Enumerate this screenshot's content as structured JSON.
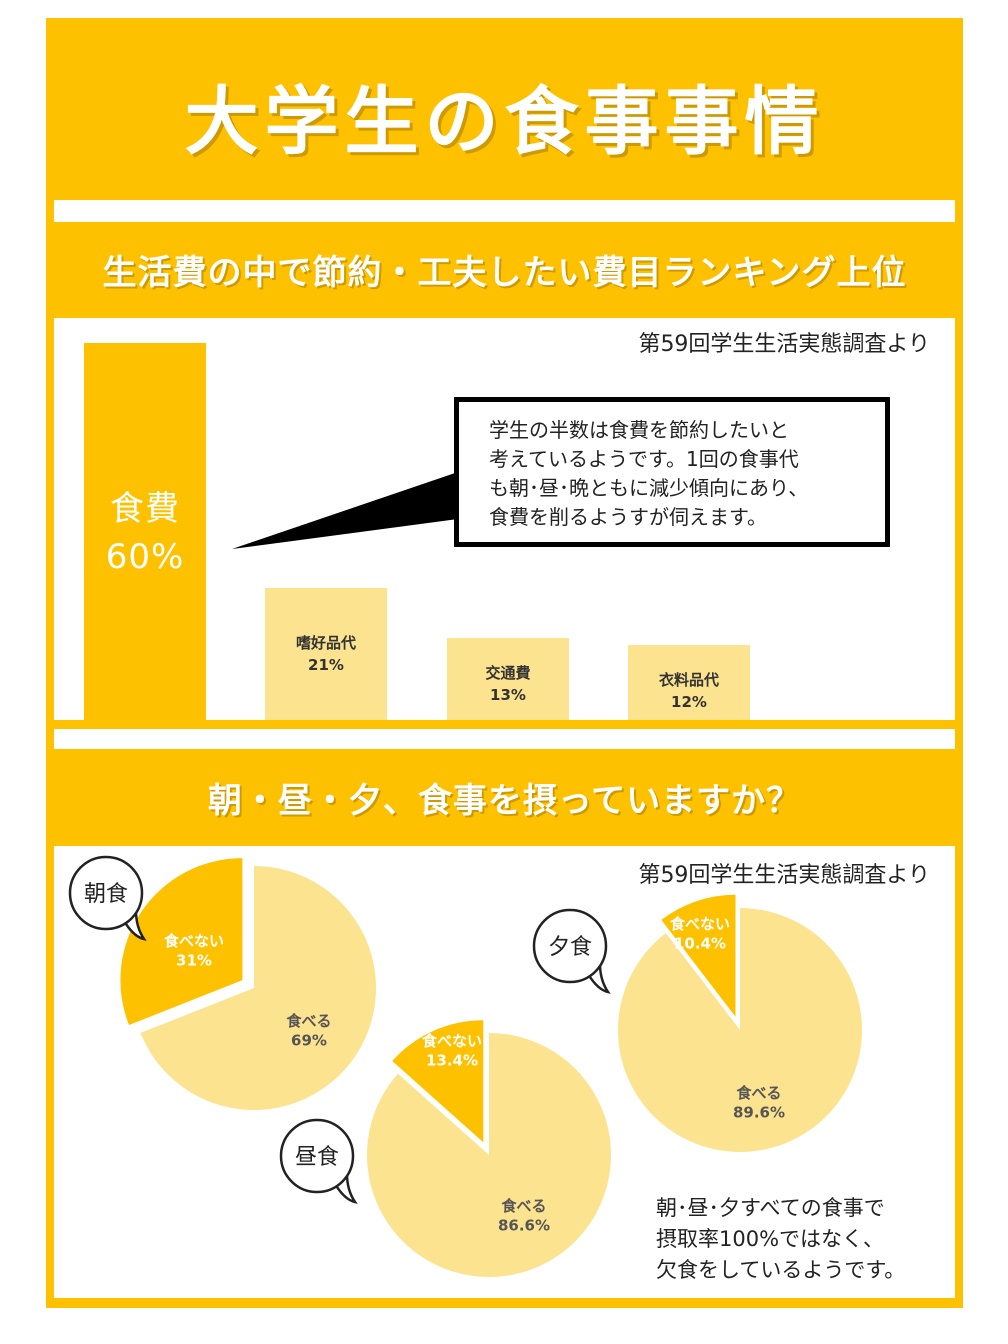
{
  "title": "大学生の食事事情",
  "section1": {
    "heading": "生活費の中で節約・工夫したい費目ランキング上位",
    "source": "第59回学生生活実態調査より",
    "callout": [
      "学生の半数は食費を節約したいと",
      "考えているようです。1回の食事代",
      "も朝･昼･晩ともに減少傾向にあり、",
      "食費を削るようすが伺えます。"
    ]
  },
  "section2": {
    "heading": "朝・昼・夕、食事を摂っていますか？",
    "source": "第59回学生生活実態調査より",
    "note": [
      "朝･昼･夕すべての食事で",
      "摂取率100%ではなく、",
      "欠食をしているようです。"
    ]
  },
  "colors": {
    "primary": "#FDC100",
    "light": "#FCE38F",
    "white": "#ffffff",
    "text": "#222222"
  },
  "chart_data": [
    {
      "type": "bar",
      "categories": [
        "食費",
        "嗜好品代",
        "交通費",
        "衣料品代"
      ],
      "values": [
        60,
        21,
        13,
        12
      ],
      "labels": [
        "60%",
        "21%",
        "13%",
        "12%"
      ],
      "ylim": [
        0,
        60
      ]
    },
    {
      "type": "pie",
      "name": "朝食",
      "labels": [
        "食べない",
        "食べる"
      ],
      "values": [
        31,
        69
      ],
      "value_labels": [
        "31%",
        "69%"
      ]
    },
    {
      "type": "pie",
      "name": "昼食",
      "labels": [
        "食べない",
        "食べる"
      ],
      "values": [
        13.4,
        86.6
      ],
      "value_labels": [
        "13.4%",
        "86.6%"
      ]
    },
    {
      "type": "pie",
      "name": "夕食",
      "labels": [
        "食べない",
        "食べる"
      ],
      "values": [
        10.4,
        89.6
      ],
      "value_labels": [
        "10.4%",
        "89.6%"
      ]
    }
  ]
}
